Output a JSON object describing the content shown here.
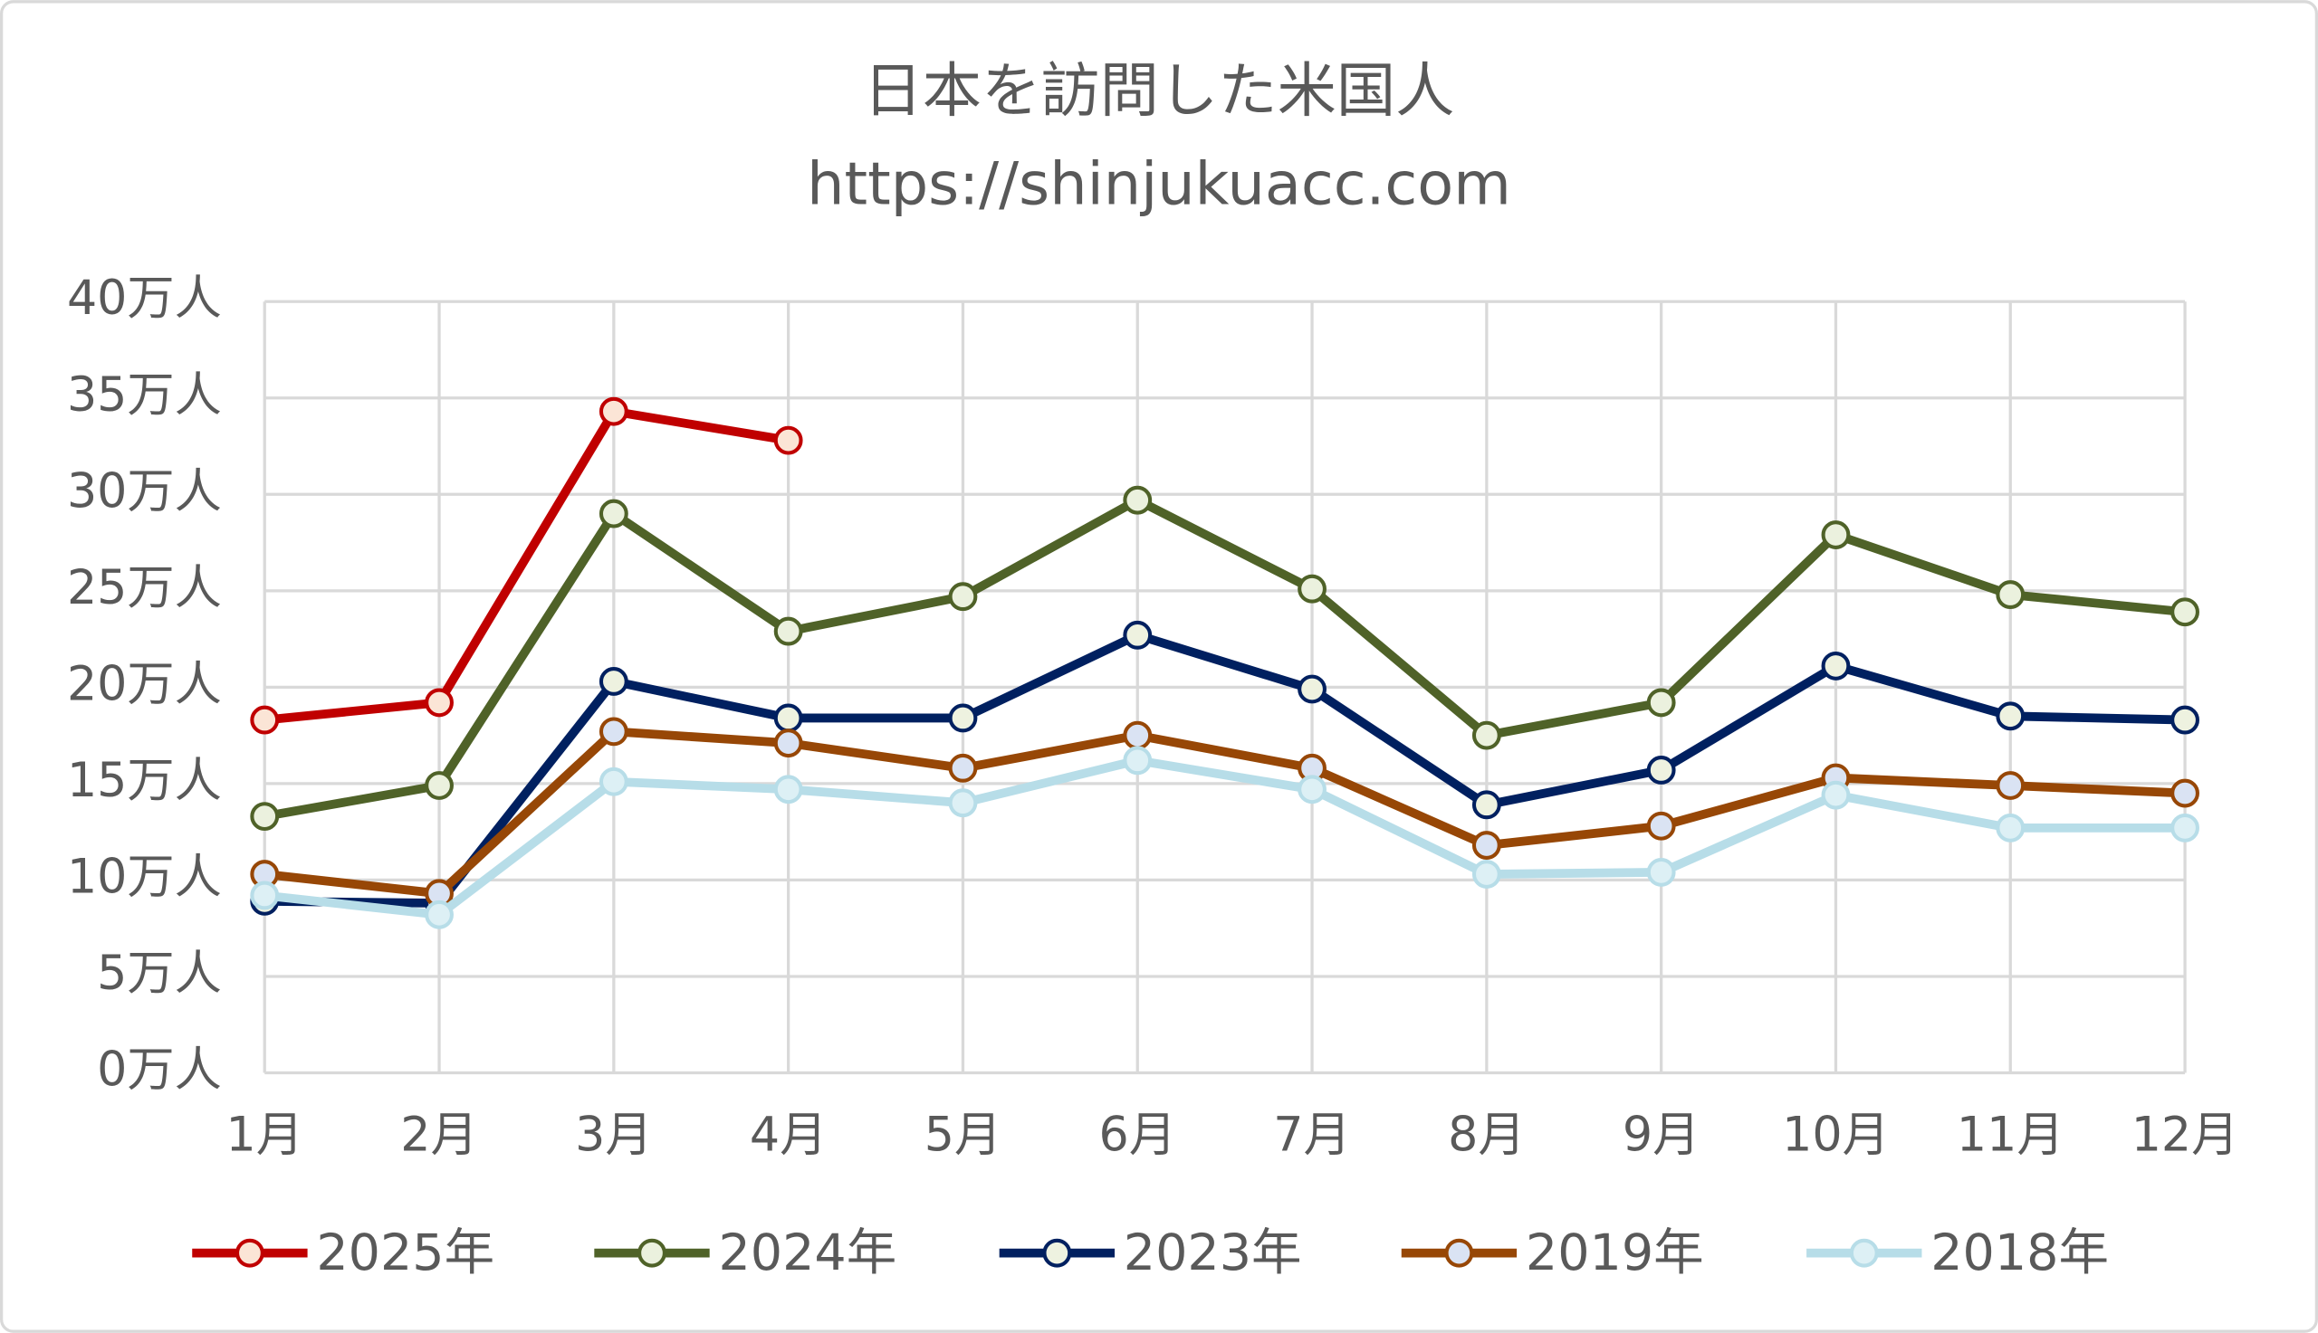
{
  "chart_data": {
    "type": "line",
    "title": "日本を訪問した米国人",
    "subtitle": "https://shinjukuacc.com",
    "categories": [
      "1月",
      "2月",
      "3月",
      "4月",
      "5月",
      "6月",
      "7月",
      "8月",
      "9月",
      "10月",
      "11月",
      "12月"
    ],
    "ylim": [
      0,
      40
    ],
    "yticks": [
      {
        "value": 0,
        "label": "0万人"
      },
      {
        "value": 5,
        "label": "5万人"
      },
      {
        "value": 10,
        "label": "10万人"
      },
      {
        "value": 15,
        "label": "15万人"
      },
      {
        "value": 20,
        "label": "20万人"
      },
      {
        "value": 25,
        "label": "25万人"
      },
      {
        "value": 30,
        "label": "30万人"
      },
      {
        "value": 35,
        "label": "35万人"
      },
      {
        "value": 40,
        "label": "40万人"
      }
    ],
    "grid": true,
    "legend": "bottom",
    "series": [
      {
        "name": "2025年",
        "color": "#c00000",
        "marker_fill": "#fbe5d6",
        "values": [
          18.3,
          19.2,
          34.3,
          32.8,
          null,
          null,
          null,
          null,
          null,
          null,
          null,
          null
        ]
      },
      {
        "name": "2024年",
        "color": "#4f6228",
        "marker_fill": "#ebf1de",
        "values": [
          13.3,
          14.9,
          29.0,
          22.9,
          24.7,
          29.7,
          25.1,
          17.5,
          19.2,
          27.9,
          24.8,
          23.9
        ]
      },
      {
        "name": "2023年",
        "color": "#002060",
        "marker_fill": "#eef2e0",
        "values": [
          8.9,
          8.8,
          20.3,
          18.4,
          18.4,
          22.7,
          19.9,
          13.9,
          15.7,
          21.1,
          18.5,
          18.3
        ]
      },
      {
        "name": "2019年",
        "color": "#974706",
        "marker_fill": "#dae3f3",
        "values": [
          10.3,
          9.3,
          17.7,
          17.1,
          15.8,
          17.5,
          15.8,
          11.8,
          12.8,
          15.3,
          14.9,
          14.5
        ]
      },
      {
        "name": "2018年",
        "color": "#b7dde8",
        "marker_fill": "#ddf0f5",
        "values": [
          9.2,
          8.2,
          15.1,
          14.7,
          14.0,
          16.2,
          14.7,
          10.3,
          10.4,
          14.4,
          12.7,
          12.7
        ]
      }
    ]
  }
}
